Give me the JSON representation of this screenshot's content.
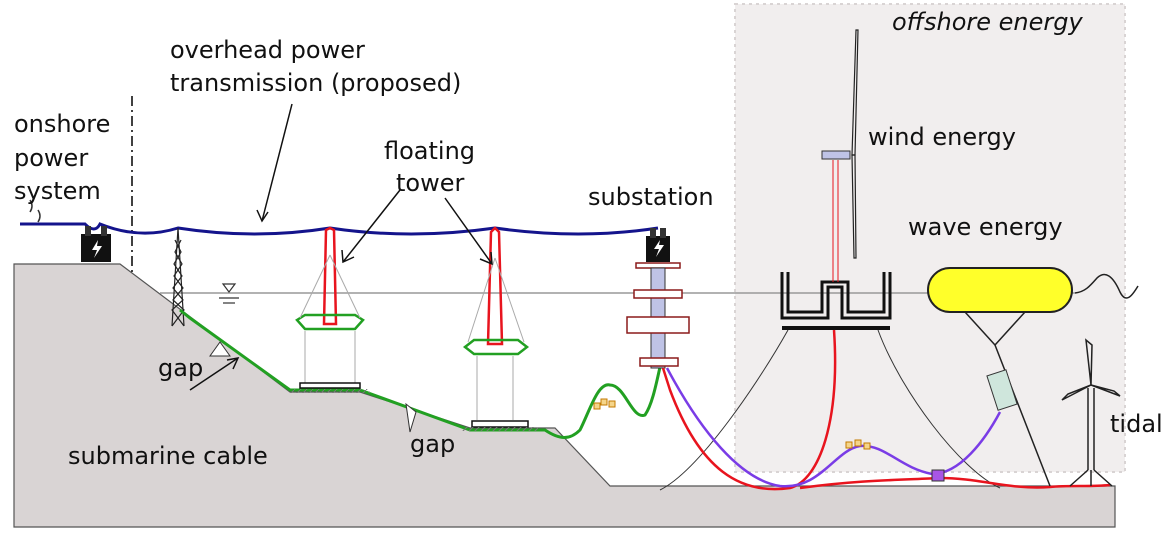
{
  "labels": {
    "offshore_region": "offshore energy",
    "overhead_line1": "overhead power",
    "overhead_line2": "transmission (proposed)",
    "onshore_line1": "onshore",
    "onshore_line2": "power",
    "onshore_line3": "system",
    "floating_line1": "floating",
    "floating_line2": "tower",
    "substation": "substation",
    "wind": "wind energy",
    "wave": "wave energy",
    "tidal": "tidal",
    "gap_left": "gap",
    "gap_right": "gap",
    "submarine_cable": "submarine cable"
  },
  "colors": {
    "seabed": "#d9d4d4",
    "overhead_line": "#14148c",
    "submarine_cable": "#22a022",
    "red_cable": "#e8141e",
    "purple_cable": "#7a3ce6",
    "wave_buoy": "#ffff2a",
    "offshore_region": "#f1eeee"
  }
}
